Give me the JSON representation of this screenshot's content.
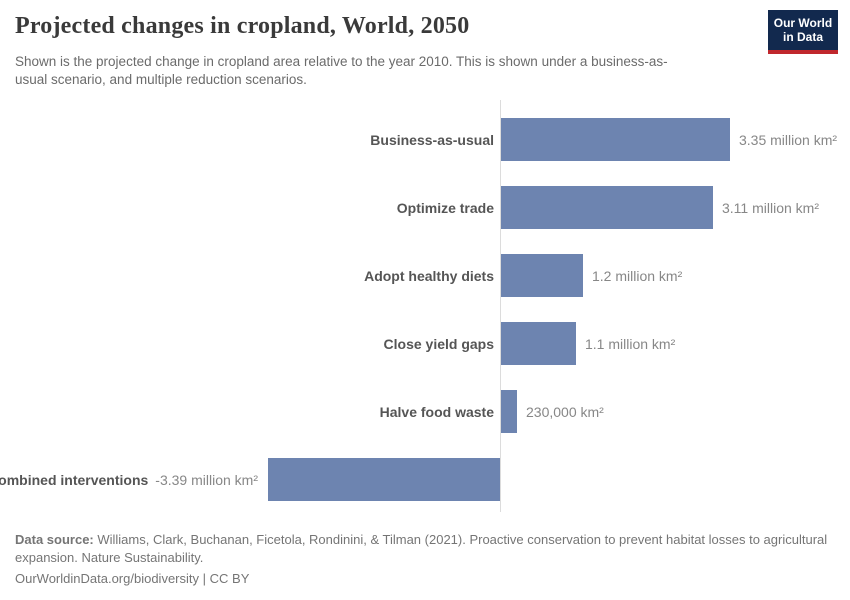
{
  "header": {
    "title": "Projected changes in cropland, World, 2050",
    "subtitle": "Shown is the projected change in cropland area relative to the year 2010. This is shown under a business-as-usual scenario, and multiple reduction scenarios.",
    "logo": {
      "line1": "Our World",
      "line2": "in Data",
      "bg_color": "#12294e",
      "accent_color": "#c0272d"
    }
  },
  "chart_data": {
    "type": "bar",
    "orientation": "horizontal",
    "title": "Projected changes in cropland, World, 2050",
    "unit": "million km²",
    "categories": [
      "Business-as-usual",
      "Optimize trade",
      "Adopt healthy diets",
      "Close yield gaps",
      "Halve food waste",
      "Combined interventions"
    ],
    "values": [
      3.35,
      3.11,
      1.2,
      1.1,
      0.23,
      -3.39
    ],
    "value_labels": [
      "3.35 million km²",
      "3.11 million km²",
      "1.2 million km²",
      "1.1 million km²",
      "230,000 km²",
      "-3.39 million km²"
    ],
    "xlim": [
      -3.39,
      3.35
    ],
    "grid": false,
    "bar_color": "#6d84b0",
    "zero_line_color": "#dcdcdc"
  },
  "footer": {
    "source_label": "Data source:",
    "source_text": " Williams, Clark, Buchanan, Ficetola, Rondinini, & Tilman (2021). Proactive conservation to prevent habitat losses to agricultural expansion. Nature Sustainability.",
    "link_text": "OurWorldinData.org/biodiversity",
    "separator": "|",
    "license": "CC BY"
  }
}
